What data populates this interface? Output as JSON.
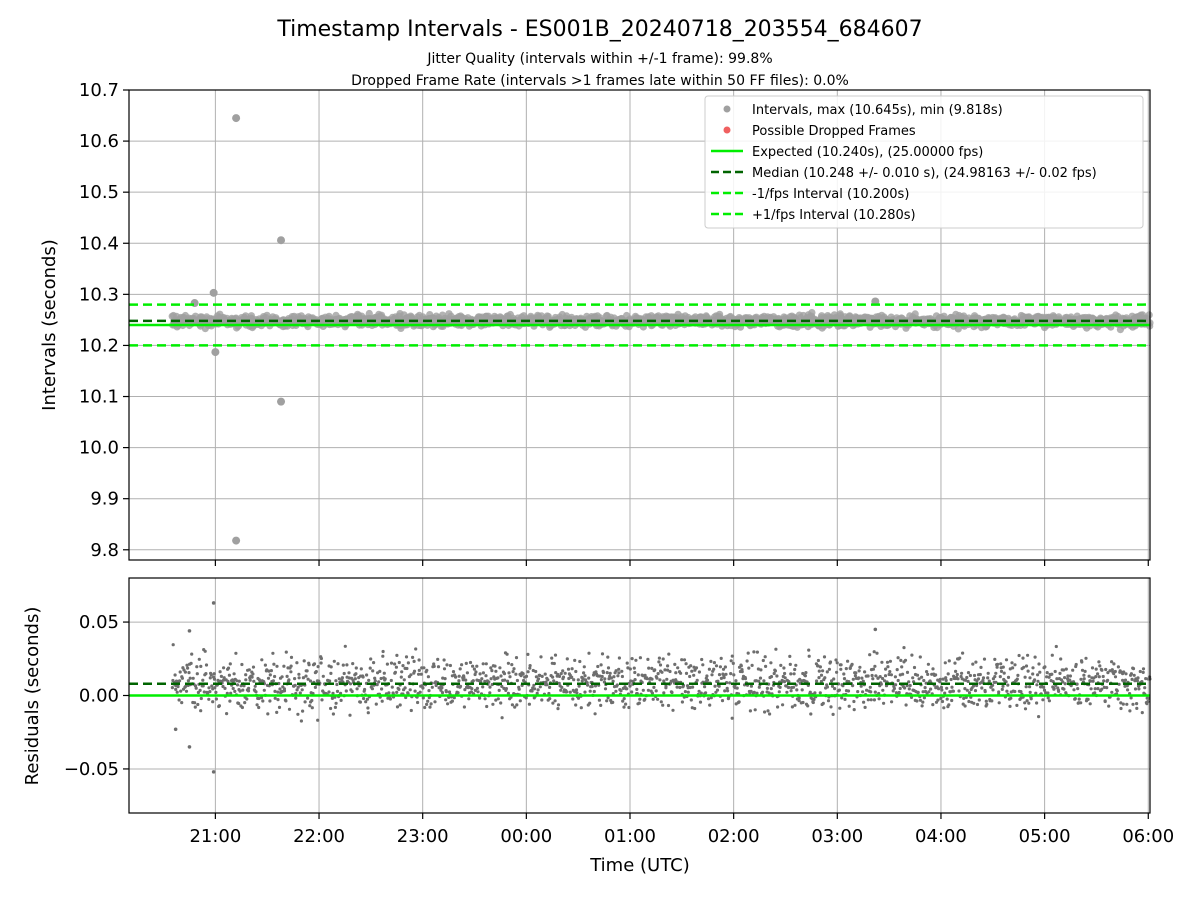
{
  "chart_data": [
    {
      "type": "scatter",
      "panel": "intervals",
      "title": "Timestamp Intervals - ES001B_20240718_203554_684607",
      "subtitle_lines": [
        "Jitter Quality (intervals within +/-1 frame): 99.8%",
        "Dropped Frame Rate (intervals >1 frames late within 50 FF files): 0.0%"
      ],
      "ylabel": "Intervals (seconds)",
      "xlabel": "",
      "ylim": [
        9.78,
        10.7
      ],
      "xlim": [
        "2024-07-18 20:10",
        "2024-07-19 06:01"
      ],
      "yticks": [
        "10.7",
        "10.6",
        "10.5",
        "10.4",
        "10.3",
        "10.2",
        "10.1",
        "10.0",
        "9.9",
        "9.8"
      ],
      "ytick_values": [
        10.7,
        10.6,
        10.5,
        10.4,
        10.3,
        10.2,
        10.1,
        10.0,
        9.9,
        9.8
      ],
      "grid": true,
      "legend_position": "top-right",
      "data_time_range": [
        "2024-07-18 20:35",
        "2024-07-19 06:01"
      ],
      "dense_band": {
        "center": 10.248,
        "spread": 0.01,
        "note": "thousands of points"
      },
      "highlighted_points": [
        {
          "x": "2024-07-18 20:48",
          "y": 10.283
        },
        {
          "x": "2024-07-18 20:59",
          "y": 10.303
        },
        {
          "x": "2024-07-18 21:00",
          "y": 10.187
        },
        {
          "x": "2024-07-18 21:12",
          "y": 10.645
        },
        {
          "x": "2024-07-18 21:12",
          "y": 9.818
        },
        {
          "x": "2024-07-18 21:38",
          "y": 10.406
        },
        {
          "x": "2024-07-18 21:38",
          "y": 10.09
        },
        {
          "x": "2024-07-19 03:22",
          "y": 10.286
        }
      ],
      "series": [
        {
          "name": "Intervals, max (10.645s), min (9.818s)",
          "kind": "scatter",
          "color": "#a0a0a0"
        },
        {
          "name": "Possible Dropped Frames",
          "kind": "scatter",
          "color": "#f06060",
          "values": []
        },
        {
          "name": "Expected (10.240s), (25.00000 fps)",
          "kind": "hline",
          "y": 10.24,
          "color": "#00ee00",
          "style": "solid"
        },
        {
          "name": "Median (10.248 +/- 0.010 s), (24.98163 +/- 0.02 fps)",
          "kind": "hline",
          "y": 10.248,
          "color": "#006400",
          "style": "dashed"
        },
        {
          "name": "-1/fps Interval (10.200s)",
          "kind": "hline",
          "y": 10.2,
          "color": "#00ee00",
          "style": "dashed"
        },
        {
          "name": "+1/fps Interval (10.280s)",
          "kind": "hline",
          "y": 10.28,
          "color": "#00ee00",
          "style": "dashed"
        }
      ]
    },
    {
      "type": "scatter",
      "panel": "residuals",
      "ylabel": "Residuals (seconds)",
      "xlabel": "Time (UTC)",
      "ylim": [
        -0.08,
        0.08
      ],
      "xlim": [
        "2024-07-18 20:10",
        "2024-07-19 06:01"
      ],
      "yticks": [
        "0.05",
        "0.00",
        "−0.05"
      ],
      "ytick_values": [
        0.05,
        0.0,
        -0.05
      ],
      "xticks": [
        "21:00",
        "22:00",
        "23:00",
        "00:00",
        "01:00",
        "02:00",
        "03:00",
        "04:00",
        "05:00",
        "06:00"
      ],
      "xtick_times": [
        "2024-07-18 21:00",
        "2024-07-18 22:00",
        "2024-07-18 23:00",
        "2024-07-19 00:00",
        "2024-07-19 01:00",
        "2024-07-19 02:00",
        "2024-07-19 03:00",
        "2024-07-19 04:00",
        "2024-07-19 05:00",
        "2024-07-19 06:00"
      ],
      "grid": true,
      "dense_band": {
        "center": 0.008,
        "spread": 0.01
      },
      "highlighted_points": [
        {
          "x": "2024-07-18 20:45",
          "y": 0.044
        },
        {
          "x": "2024-07-18 20:59",
          "y": 0.063
        },
        {
          "x": "2024-07-18 20:59",
          "y": -0.052
        },
        {
          "x": "2024-07-18 20:45",
          "y": -0.035
        },
        {
          "x": "2024-07-18 20:37",
          "y": -0.023
        },
        {
          "x": "2024-07-19 03:22",
          "y": 0.045
        }
      ],
      "series": [
        {
          "kind": "scatter",
          "color": "#6e6e6e"
        },
        {
          "kind": "hline",
          "y": 0.0,
          "color": "#00ee00",
          "style": "solid"
        },
        {
          "kind": "hline",
          "y": 0.008,
          "color": "#006400",
          "style": "dashed"
        }
      ]
    }
  ]
}
